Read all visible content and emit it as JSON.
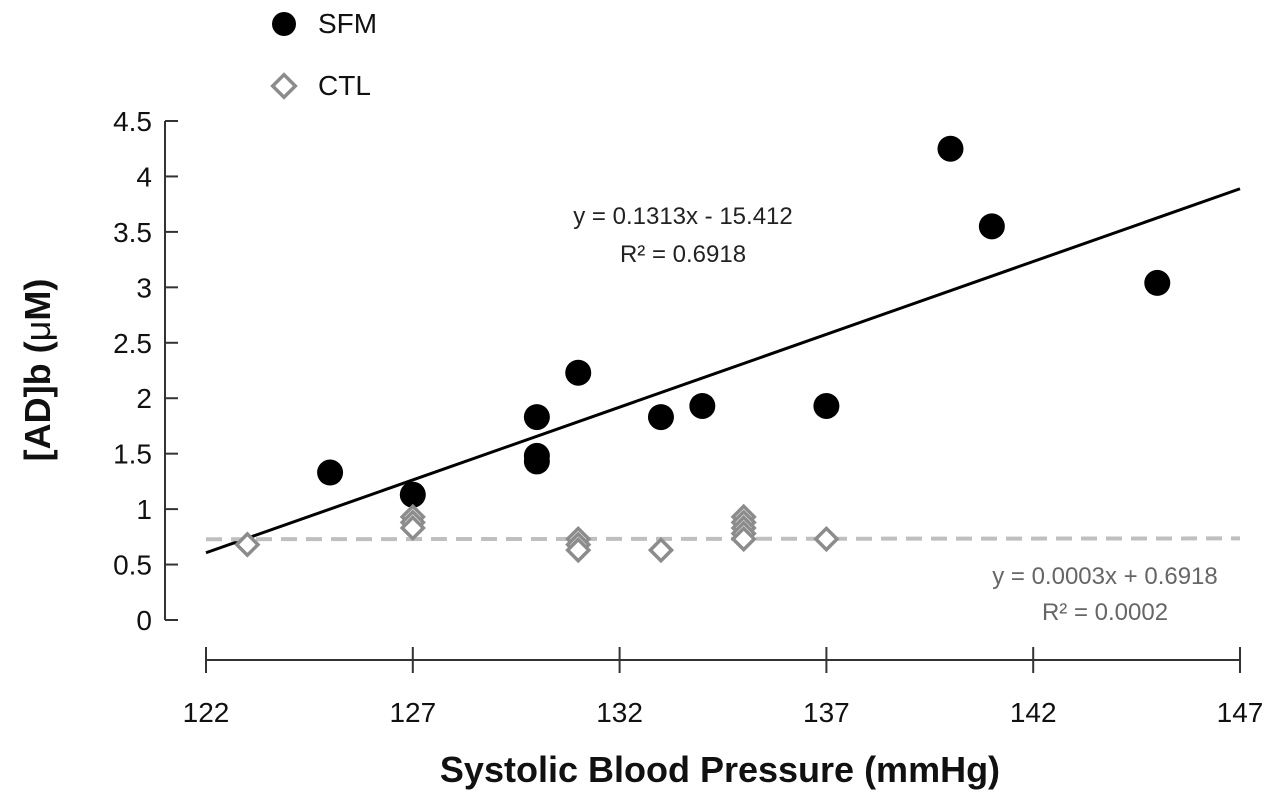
{
  "chart_data": {
    "type": "scatter",
    "title": "",
    "xlabel": "Systolic Blood Pressure (mmHg)",
    "ylabel_main": "[AD]b (",
    "ylabel_mu": "μ",
    "ylabel_end": "M)",
    "xlim": [
      122,
      147
    ],
    "ylim": [
      0,
      4.5
    ],
    "x_ticks": [
      "122",
      "127",
      "132",
      "137",
      "142",
      "147"
    ],
    "y_ticks": [
      "0",
      "0.5",
      "1",
      "1.5",
      "2",
      "2.5",
      "3",
      "3.5",
      "4",
      "4.5"
    ],
    "legend_position": "top-left",
    "series": [
      {
        "name": "SFM",
        "marker": "circle",
        "color": "#000000",
        "points": [
          [
            125,
            1.33
          ],
          [
            127,
            1.13
          ],
          [
            130,
            1.83
          ],
          [
            130,
            1.48
          ],
          [
            130,
            1.43
          ],
          [
            131,
            2.23
          ],
          [
            133,
            1.83
          ],
          [
            134,
            1.93
          ],
          [
            137,
            1.93
          ],
          [
            140,
            4.25
          ],
          [
            141,
            3.55
          ],
          [
            145,
            3.04
          ]
        ],
        "trendline": {
          "slope": 0.1313,
          "intercept": -15.412,
          "x_range": [
            122,
            147
          ],
          "style": "solid",
          "color": "#000000",
          "equation": "y = 0.1313x - 15.412",
          "r2_label": "R² = 0.6918",
          "label_color": "#222222"
        }
      },
      {
        "name": "CTL",
        "marker": "diamond",
        "color": "#8c8c8c",
        "points": [
          [
            123,
            0.68
          ],
          [
            127,
            0.93
          ],
          [
            127,
            0.88
          ],
          [
            127,
            0.83
          ],
          [
            131,
            0.73
          ],
          [
            131,
            0.68
          ],
          [
            131,
            0.63
          ],
          [
            133,
            0.63
          ],
          [
            135,
            0.93
          ],
          [
            135,
            0.88
          ],
          [
            135,
            0.83
          ],
          [
            135,
            0.78
          ],
          [
            135,
            0.73
          ],
          [
            137,
            0.73
          ]
        ],
        "trendline": {
          "slope": 0.0003,
          "intercept": 0.6918,
          "x_range": [
            122,
            147
          ],
          "style": "dashed",
          "color": "#bfbfbf",
          "equation": "y = 0.0003x + 0.6918",
          "r2_label": "R² = 0.0002",
          "label_color": "#666666"
        }
      }
    ]
  }
}
